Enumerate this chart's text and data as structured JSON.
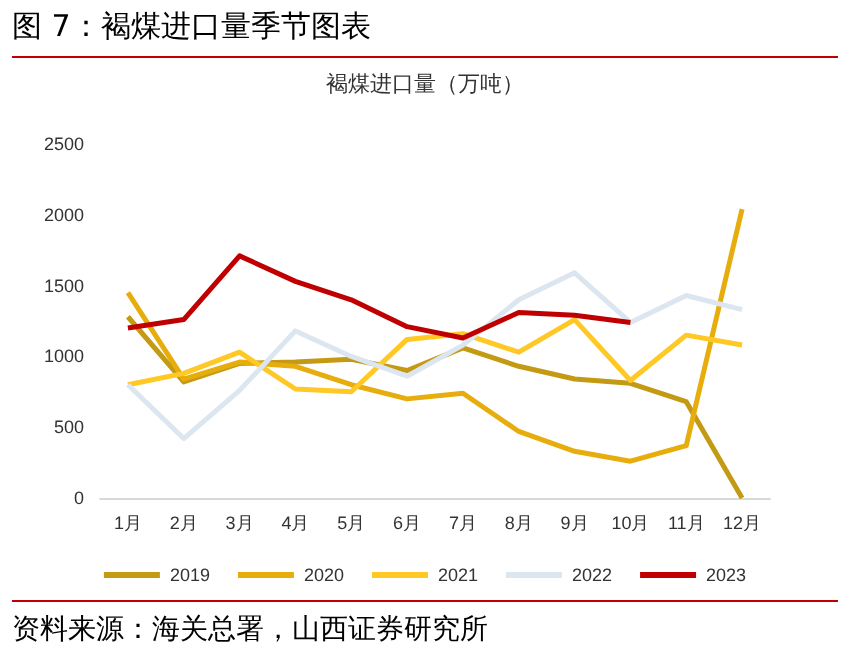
{
  "chart_data": {
    "type": "line",
    "title": "图 7：褐煤进口量季节图表",
    "subtitle": "褐煤进口量（万吨）",
    "annotations": [
      "资料来源：海关总署，山西证券研究所"
    ],
    "categories": [
      "1月",
      "2月",
      "3月",
      "4月",
      "5月",
      "6月",
      "7月",
      "8月",
      "9月",
      "10月",
      "11月",
      "12月"
    ],
    "series": [
      {
        "name": "2019",
        "color": "#c49a14",
        "values": [
          1280,
          820,
          950,
          960,
          980,
          900,
          1060,
          930,
          840,
          810,
          680,
          0
        ]
      },
      {
        "name": "2020",
        "color": "#e6ad0c",
        "values": [
          1450,
          840,
          960,
          930,
          800,
          700,
          740,
          470,
          330,
          260,
          370,
          2040
        ]
      },
      {
        "name": "2021",
        "color": "#ffc824",
        "values": [
          800,
          880,
          1030,
          770,
          750,
          1120,
          1160,
          1030,
          1260,
          830,
          1150,
          1080
        ]
      },
      {
        "name": "2022",
        "color": "#dce6f0",
        "values": [
          800,
          420,
          760,
          1180,
          1000,
          860,
          1080,
          1400,
          1590,
          1240,
          1430,
          1330
        ]
      },
      {
        "name": "2023",
        "color": "#c00000",
        "values": [
          1200,
          1260,
          1710,
          1530,
          1400,
          1210,
          1130,
          1310,
          1290,
          1240,
          null,
          null
        ]
      }
    ],
    "ylim": [
      0,
      2500
    ],
    "yticks": [
      0,
      500,
      1000,
      1500,
      2000,
      2500
    ],
    "grid": false,
    "legend": "bottom",
    "marker": "none",
    "line_style": "solid"
  }
}
